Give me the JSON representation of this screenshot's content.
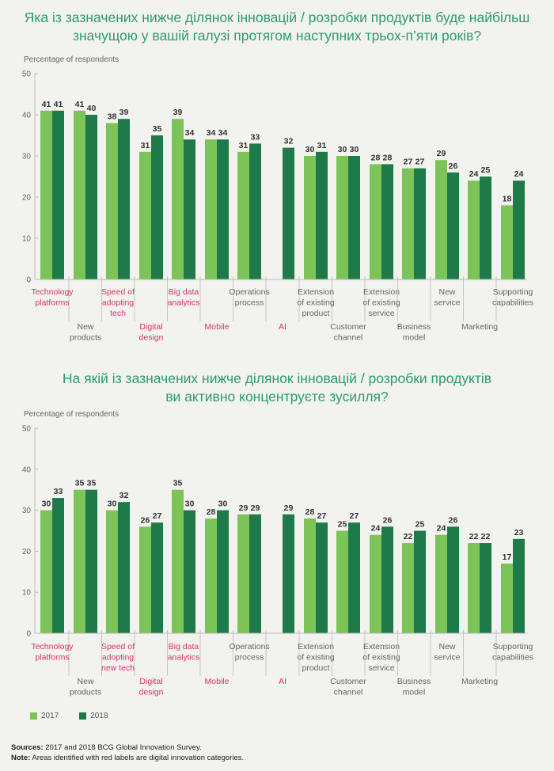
{
  "colors": {
    "y2017": "#7dc458",
    "y2018": "#1e7a48",
    "digital": "#d6336c",
    "normal": "#666666",
    "title": "#2d9e68"
  },
  "chart1": {
    "title_line1": "Яка із зазначених нижче ділянок інновацій / розробки продуктів буде найбільш",
    "title_line2": "значущою у вашій галузі протягом наступних трьох-п’яти років?",
    "ylabel": "Percentage of respondents"
  },
  "chart2": {
    "title_line1": "На якій із зазначених нижче ділянок інновацій / розробки продуктів",
    "title_line2": "ви активно концентруєте зусилля?",
    "ylabel": "Percentage of respondents"
  },
  "chart_data": [
    {
      "type": "bar",
      "title": "Яка із зазначених нижче ділянок інновацій / розробки продуктів буде найбільш значущою у вашій галузі протягом наступних трьох-п’яти років?",
      "ylabel": "Percentage of respondents",
      "ylim": [
        0,
        50
      ],
      "yticks": [
        0,
        10,
        20,
        30,
        40,
        50
      ],
      "categories": [
        "Technology platforms",
        "New products",
        "Speed of adopting tech",
        "Digital design",
        "Big data analytics",
        "Mobile",
        "Operations process",
        "AI",
        "Extension of existing product",
        "Customer channel",
        "Extension of existing service",
        "Business model",
        "New service",
        "Marketing",
        "Supporting capabilities"
      ],
      "label_lines": [
        [
          "Technology",
          "platforms"
        ],
        [
          "New",
          "products"
        ],
        [
          "Speed of",
          "adopting",
          "tech"
        ],
        [
          "Digital",
          "design"
        ],
        [
          "Big data",
          "analytics"
        ],
        [
          "Mobile"
        ],
        [
          "Operations",
          "process"
        ],
        [
          "AI"
        ],
        [
          "Extension",
          "of existing",
          "product"
        ],
        [
          "Customer",
          "channel"
        ],
        [
          "Extension",
          "of existing",
          "service"
        ],
        [
          "Business",
          "model"
        ],
        [
          "New",
          "service"
        ],
        [
          "Marketing"
        ],
        [
          "Supporting",
          "capabilities"
        ]
      ],
      "label_rows": [
        "top",
        "bottom",
        "top",
        "bottom",
        "top",
        "bottom",
        "top",
        "bottom",
        "top",
        "bottom",
        "top",
        "bottom",
        "top",
        "bottom",
        "top"
      ],
      "digital": [
        true,
        false,
        true,
        true,
        true,
        true,
        false,
        true,
        false,
        false,
        false,
        false,
        false,
        false,
        false
      ],
      "series": [
        {
          "name": "2017",
          "values": [
            41,
            41,
            38,
            31,
            39,
            34,
            31,
            null,
            30,
            30,
            28,
            27,
            29,
            24,
            18
          ]
        },
        {
          "name": "2018",
          "values": [
            41,
            40,
            39,
            35,
            34,
            34,
            33,
            32,
            31,
            30,
            28,
            27,
            26,
            25,
            24
          ]
        }
      ]
    },
    {
      "type": "bar",
      "title": "На якій із зазначених нижче ділянок інновацій / розробки продуктів ви активно концентруєте зусилля?",
      "ylabel": "Percentage of respondents",
      "ylim": [
        0,
        50
      ],
      "yticks": [
        0,
        10,
        20,
        30,
        40,
        50
      ],
      "categories": [
        "Technology platforms",
        "New products",
        "Speed of adopting new tech",
        "Digital design",
        "Big data analytics",
        "Mobile",
        "Operations process",
        "AI",
        "Extension of existing product",
        "Customer channel",
        "Extension of existing service",
        "Business model",
        "New service",
        "Marketing",
        "Supporting capabilities"
      ],
      "label_lines": [
        [
          "Technology",
          "platforms"
        ],
        [
          "New",
          "products"
        ],
        [
          "Speed of",
          "adopting",
          "new tech"
        ],
        [
          "Digital",
          "design"
        ],
        [
          "Big data",
          "analytics"
        ],
        [
          "Mobile"
        ],
        [
          "Operations",
          "process"
        ],
        [
          "AI"
        ],
        [
          "Extension",
          "of existing",
          "product"
        ],
        [
          "Customer",
          "channel"
        ],
        [
          "Extension",
          "of existing",
          "service"
        ],
        [
          "Business",
          "model"
        ],
        [
          "New",
          "service"
        ],
        [
          "Marketing"
        ],
        [
          "Supporting",
          "capabilities"
        ]
      ],
      "label_rows": [
        "top",
        "bottom",
        "top",
        "bottom",
        "top",
        "bottom",
        "top",
        "bottom",
        "top",
        "bottom",
        "top",
        "bottom",
        "top",
        "bottom",
        "top"
      ],
      "digital": [
        true,
        false,
        true,
        true,
        true,
        true,
        false,
        true,
        false,
        false,
        false,
        false,
        false,
        false,
        false
      ],
      "series": [
        {
          "name": "2017",
          "values": [
            30,
            35,
            30,
            26,
            35,
            28,
            29,
            null,
            28,
            25,
            24,
            22,
            24,
            22,
            17
          ]
        },
        {
          "name": "2018",
          "values": [
            33,
            35,
            32,
            27,
            30,
            30,
            29,
            29,
            27,
            27,
            26,
            25,
            26,
            22,
            23
          ]
        }
      ]
    }
  ],
  "legend": {
    "label_2017": "2017",
    "label_2018": "2018"
  },
  "footnote": {
    "sources_label": "Sources:",
    "sources_text": "2017 and 2018 BCG Global Innovation Survey.",
    "note_label": "Note:",
    "note_text": "Areas identified with red labels are digital innovation categories."
  }
}
